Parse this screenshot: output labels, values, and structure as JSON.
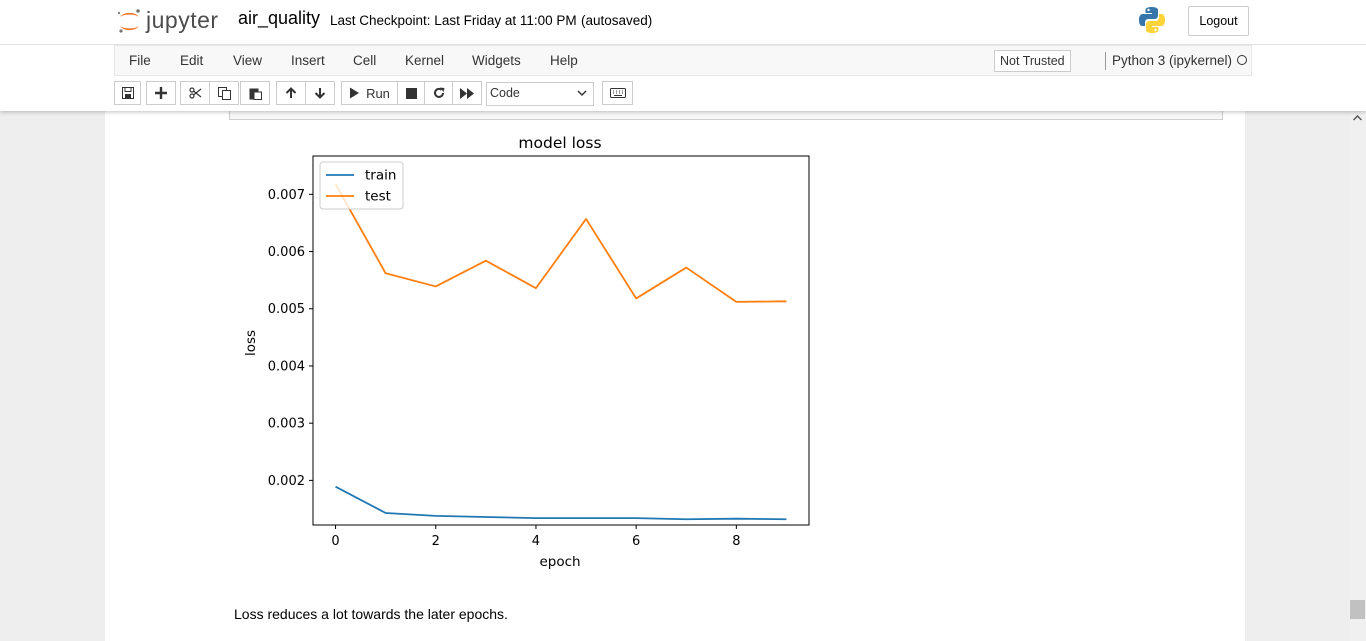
{
  "header": {
    "logo_text": "jupyter",
    "notebook_name": "air_quality",
    "checkpoint": "Last Checkpoint: Last Friday at 11:00 PM",
    "autosave": "(autosaved)",
    "logout_label": "Logout"
  },
  "menu": {
    "items": [
      "File",
      "Edit",
      "View",
      "Insert",
      "Cell",
      "Kernel",
      "Widgets",
      "Help"
    ],
    "trust_label": "Not Trusted",
    "kernel_name": "Python 3 (ipykernel)"
  },
  "toolbar": {
    "buttons": [
      "save-icon",
      "plus-icon",
      "cut-icon",
      "copy-icon",
      "paste-icon",
      "arrow-up-icon",
      "arrow-down-icon",
      "run-icon",
      "stop-icon",
      "restart-icon",
      "fast-forward-icon",
      "keyboard-icon"
    ],
    "run_label": "Run",
    "cell_type": "Code"
  },
  "output": {
    "markdown_text": "Loss reduces a lot towards the later epochs."
  },
  "chart_data": {
    "type": "line",
    "title": "model loss",
    "xlabel": "epoch",
    "ylabel": "loss",
    "x": [
      0,
      1,
      2,
      3,
      4,
      5,
      6,
      7,
      8,
      9
    ],
    "xlim": [
      -0.45,
      9.45
    ],
    "ylim": [
      0.00122,
      0.00767
    ],
    "xticks": [
      "0",
      "2",
      "4",
      "6",
      "8"
    ],
    "yticks": [
      "0.002",
      "0.003",
      "0.004",
      "0.005",
      "0.006",
      "0.007"
    ],
    "legend_position": "upper left",
    "series": [
      {
        "name": "train",
        "color": "#1f77b4",
        "values": [
          0.00189,
          0.00143,
          0.00138,
          0.00136,
          0.00134,
          0.00134,
          0.00134,
          0.00132,
          0.00133,
          0.00132
        ]
      },
      {
        "name": "test",
        "color": "#ff7f0e",
        "values": [
          0.00718,
          0.00562,
          0.00539,
          0.00584,
          0.00536,
          0.00657,
          0.00518,
          0.00572,
          0.00512,
          0.00513
        ]
      }
    ]
  }
}
